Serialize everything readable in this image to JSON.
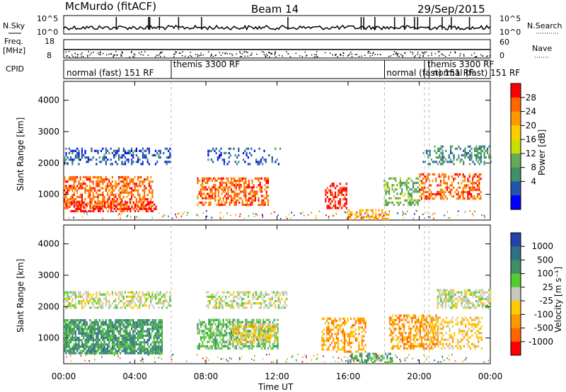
{
  "header": {
    "station": "McMurdo (fitACF)",
    "beam": "Beam 14",
    "date": "29/Sep/2015"
  },
  "param_panels": {
    "nsky_label": "N.Sky",
    "nsearch_label": "N.Search",
    "nsky_ticks": [
      "10^5",
      "10^0"
    ],
    "nsearch_ticks": [
      "10^5",
      "10^0"
    ],
    "freq_label_line1": "Freq.",
    "freq_label_line2": "[MHz]",
    "freq_ticks": [
      "18",
      "8"
    ],
    "nave_label": "Nave",
    "nave_ticks": [
      "60",
      "0"
    ],
    "cpid_label": "CPID",
    "modes": [
      {
        "text": "normal (fast) 151 RF",
        "start_hour": 0
      },
      {
        "text": "themis 3300 RF",
        "start_hour": 6
      },
      {
        "text": "normal (fast) 151 RF",
        "start_hour": 18
      },
      {
        "text": "themis 3300 RF",
        "start_hour": 20.3
      },
      {
        "text": "normal (fast) 151 RF",
        "start_hour": 20.6
      }
    ],
    "mode_switch_hours": [
      6.05,
      18.05,
      20.3,
      20.55
    ]
  },
  "chart_data": [
    {
      "type": "heatmap",
      "name": "power",
      "ylabel": "Slant Range [km]",
      "xlabel": "Time UT",
      "x_range_hours": [
        0,
        24
      ],
      "ylim": [
        180,
        4600
      ],
      "y_ticks": [
        1000,
        2000,
        3000,
        4000
      ],
      "colorbar_label": "Power [dB]",
      "colorbar_ticks": [
        "28",
        "24",
        "20",
        "16",
        "12",
        "8",
        "4"
      ],
      "colorbar_colors": [
        "#ff0000",
        "#ff6600",
        "#ff9900",
        "#ffcc00",
        "#c8e000",
        "#66aa55",
        "#3f8f68",
        "#2255aa",
        "#0000ff"
      ],
      "regions": [
        {
          "t0": 0.0,
          "t1": 6.0,
          "r0": 2000,
          "r1": 2500,
          "color_index": 7,
          "density": 0.35
        },
        {
          "t0": 0.0,
          "t1": 5.0,
          "r0": 600,
          "r1": 1600,
          "color_index": 1,
          "density": 0.55
        },
        {
          "t0": 0.2,
          "t1": 5.2,
          "r0": 500,
          "r1": 800,
          "color_index": 0,
          "density": 0.45
        },
        {
          "t0": 7.5,
          "t1": 11.5,
          "r0": 700,
          "r1": 1600,
          "color_index": 1,
          "density": 0.55
        },
        {
          "t0": 8.0,
          "t1": 12.2,
          "r0": 2000,
          "r1": 2500,
          "color_index": 7,
          "density": 0.2
        },
        {
          "t0": 14.7,
          "t1": 15.9,
          "r0": 600,
          "r1": 1400,
          "color_index": 0,
          "density": 0.5
        },
        {
          "t0": 15.9,
          "t1": 18.3,
          "r0": 250,
          "r1": 550,
          "color_index": 2,
          "density": 0.5
        },
        {
          "t0": 18.0,
          "t1": 20.0,
          "r0": 700,
          "r1": 1600,
          "color_index": 5,
          "density": 0.4
        },
        {
          "t0": 20.0,
          "t1": 23.5,
          "r0": 900,
          "r1": 1700,
          "color_index": 1,
          "density": 0.45
        },
        {
          "t0": 20.2,
          "t1": 24.0,
          "r0": 2000,
          "r1": 2600,
          "color_index": 6,
          "density": 0.35
        }
      ]
    },
    {
      "type": "heatmap",
      "name": "velocity",
      "ylabel": "Slant Range [km]",
      "xlabel": "Time UT",
      "x_range_hours": [
        0,
        24
      ],
      "ylim": [
        180,
        4600
      ],
      "y_ticks": [
        1000,
        2000,
        3000,
        4000
      ],
      "x_tick_labels": [
        "00:00",
        "04:00",
        "08:00",
        "12:00",
        "16:00",
        "20:00",
        "00:00"
      ],
      "x_tick_hours": [
        0,
        4,
        8,
        12,
        16,
        20,
        24
      ],
      "colorbar_label": "Velocity [m s⁻¹]",
      "colorbar_ticks": [
        "1000",
        "500",
        "100",
        "25",
        "-25",
        "-100",
        "-500",
        "-1000"
      ],
      "colorbar_colors": [
        "#2244aa",
        "#2f6f8a",
        "#3f8f68",
        "#55cc33",
        "#c8c8c0",
        "#ffcc00",
        "#ff9900",
        "#ff6600",
        "#ff0000"
      ],
      "regions": [
        {
          "t0": 0.0,
          "t1": 6.0,
          "r0": 2000,
          "r1": 2500,
          "color_index": 4,
          "density": 0.55
        },
        {
          "t0": 0.0,
          "t1": 5.5,
          "r0": 550,
          "r1": 1650,
          "color_index": 2,
          "density": 0.8
        },
        {
          "t0": 7.5,
          "t1": 12.0,
          "r0": 700,
          "r1": 1650,
          "color_index": 3,
          "density": 0.6
        },
        {
          "t0": 9.5,
          "t1": 12.0,
          "r0": 900,
          "r1": 1500,
          "color_index": 5,
          "density": 0.5
        },
        {
          "t0": 8.0,
          "t1": 12.5,
          "r0": 2000,
          "r1": 2500,
          "color_index": 4,
          "density": 0.5
        },
        {
          "t0": 14.5,
          "t1": 17.0,
          "r0": 600,
          "r1": 1700,
          "color_index": 6,
          "density": 0.45
        },
        {
          "t0": 16.0,
          "t1": 18.5,
          "r0": 250,
          "r1": 550,
          "color_index": 2,
          "density": 0.5
        },
        {
          "t0": 18.3,
          "t1": 21.0,
          "r0": 700,
          "r1": 1800,
          "color_index": 6,
          "density": 0.55
        },
        {
          "t0": 20.5,
          "t1": 23.5,
          "r0": 700,
          "r1": 1700,
          "color_index": 5,
          "density": 0.35
        },
        {
          "t0": 21.0,
          "t1": 24.0,
          "r0": 2000,
          "r1": 2600,
          "color_index": 4,
          "density": 0.6
        }
      ]
    }
  ]
}
